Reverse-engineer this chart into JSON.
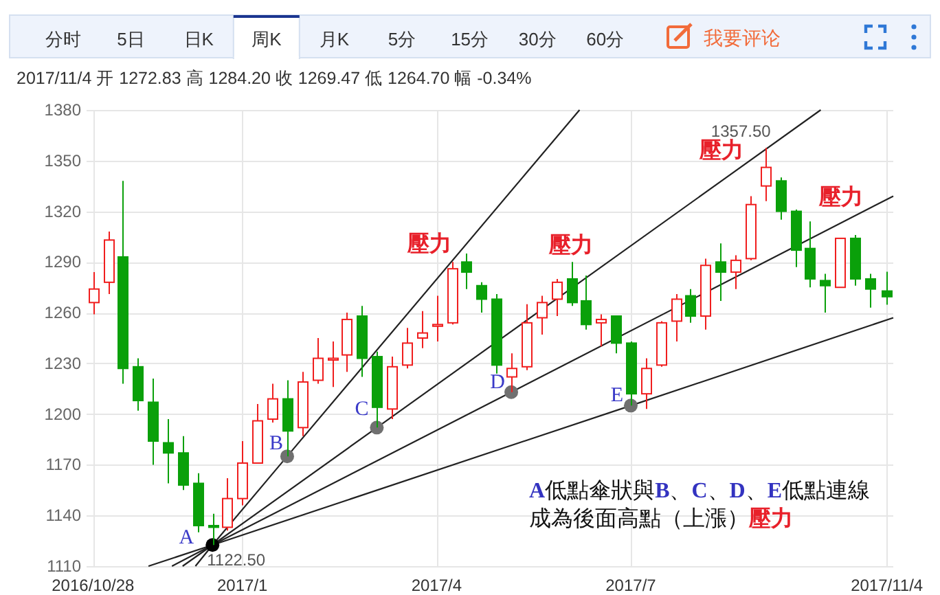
{
  "chart_data": {
    "type": "candlestick",
    "subtitle": "2017/11/4 开 1272.83 高 1284.20 收 1269.47 低 1264.70 幅 -0.34%",
    "x": [
      "2016-10-28",
      "2016-11-04",
      "2016-11-11",
      "2016-11-18",
      "2016-11-25",
      "2016-12-02",
      "2016-12-09",
      "2016-12-16",
      "2016-12-23",
      "2016-12-30",
      "2017-01-06",
      "2017-01-13",
      "2017-01-20",
      "2017-01-27",
      "2017-02-03",
      "2017-02-10",
      "2017-02-17",
      "2017-02-24",
      "2017-03-03",
      "2017-03-10",
      "2017-03-17",
      "2017-03-24",
      "2017-03-31",
      "2017-04-07",
      "2017-04-14",
      "2017-04-21",
      "2017-04-28",
      "2017-05-05",
      "2017-05-12",
      "2017-05-19",
      "2017-05-26",
      "2017-06-02",
      "2017-06-09",
      "2017-06-16",
      "2017-06-23",
      "2017-06-30",
      "2017-07-07",
      "2017-07-14",
      "2017-07-21",
      "2017-07-28",
      "2017-08-04",
      "2017-08-11",
      "2017-08-18",
      "2017-08-25",
      "2017-09-01",
      "2017-09-08",
      "2017-09-15",
      "2017-09-22",
      "2017-09-29",
      "2017-10-06",
      "2017-10-13",
      "2017-10-20",
      "2017-10-27",
      "2017-11-04"
    ],
    "ohlc": [
      [
        1266,
        1284,
        1259,
        1274
      ],
      [
        1278,
        1308,
        1271,
        1303
      ],
      [
        1293,
        1338,
        1218,
        1227
      ],
      [
        1228,
        1233,
        1202,
        1208
      ],
      [
        1207,
        1221,
        1170,
        1184
      ],
      [
        1183,
        1197,
        1159,
        1177
      ],
      [
        1177,
        1187,
        1155,
        1158
      ],
      [
        1159,
        1165,
        1130,
        1134
      ],
      [
        1134,
        1141,
        1122.5,
        1133
      ],
      [
        1133,
        1162,
        1131,
        1150
      ],
      [
        1150,
        1184,
        1146,
        1171
      ],
      [
        1171,
        1206,
        1171,
        1196
      ],
      [
        1197,
        1218,
        1195,
        1209
      ],
      [
        1209,
        1220,
        1175,
        1190
      ],
      [
        1192,
        1225,
        1187,
        1219
      ],
      [
        1220,
        1245,
        1218,
        1233
      ],
      [
        1232,
        1243,
        1216,
        1233
      ],
      [
        1235,
        1260,
        1225,
        1256
      ],
      [
        1258,
        1264,
        1222,
        1233
      ],
      [
        1234,
        1237,
        1192,
        1204
      ],
      [
        1203,
        1234,
        1197,
        1228
      ],
      [
        1229,
        1251,
        1227,
        1242
      ],
      [
        1245,
        1261,
        1239,
        1248
      ],
      [
        1252,
        1270,
        1243,
        1253
      ],
      [
        1254,
        1290,
        1253,
        1286
      ],
      [
        1290,
        1295,
        1274,
        1284
      ],
      [
        1276,
        1278,
        1260,
        1268
      ],
      [
        1268,
        1271,
        1224,
        1229
      ],
      [
        1222,
        1236,
        1213,
        1227
      ],
      [
        1228,
        1265,
        1226,
        1254
      ],
      [
        1257,
        1270,
        1247,
        1266
      ],
      [
        1268,
        1280,
        1258,
        1278
      ],
      [
        1280,
        1290,
        1264,
        1266
      ],
      [
        1267,
        1282,
        1250,
        1253
      ],
      [
        1254,
        1259,
        1240,
        1256
      ],
      [
        1258,
        1258,
        1236,
        1242
      ],
      [
        1242,
        1243,
        1205,
        1212
      ],
      [
        1212,
        1233,
        1203,
        1227
      ],
      [
        1229,
        1255,
        1228,
        1254
      ],
      [
        1255,
        1271,
        1243,
        1268
      ],
      [
        1270,
        1274,
        1254,
        1258
      ],
      [
        1258,
        1292,
        1250,
        1288
      ],
      [
        1290,
        1301,
        1267,
        1284
      ],
      [
        1284,
        1294,
        1274,
        1291
      ],
      [
        1292,
        1329,
        1291,
        1324
      ],
      [
        1335,
        1357.5,
        1326,
        1346
      ],
      [
        1338,
        1340,
        1315,
        1320
      ],
      [
        1320,
        1321,
        1287,
        1297
      ],
      [
        1298,
        1314,
        1275,
        1280
      ],
      [
        1279,
        1283,
        1260,
        1276
      ],
      [
        1275,
        1304,
        1275,
        1304
      ],
      [
        1304,
        1306,
        1276,
        1280
      ],
      [
        1280,
        1283,
        1263,
        1274
      ],
      [
        1272.83,
        1284.2,
        1264.7,
        1269.47
      ]
    ],
    "colors": [
      "#f01e1e",
      "#f01e1e",
      "#0aa00a",
      "#0aa00a",
      "#0aa00a",
      "#0aa00a",
      "#0aa00a",
      "#0aa00a",
      "#0aa00a",
      "#f01e1e",
      "#f01e1e",
      "#f01e1e",
      "#f01e1e",
      "#0aa00a",
      "#f01e1e",
      "#f01e1e",
      "#f01e1e",
      "#f01e1e",
      "#0aa00a",
      "#0aa00a",
      "#f01e1e",
      "#f01e1e",
      "#f01e1e",
      "#f01e1e",
      "#f01e1e",
      "#0aa00a",
      "#0aa00a",
      "#0aa00a",
      "#f01e1e",
      "#f01e1e",
      "#f01e1e",
      "#f01e1e",
      "#0aa00a",
      "#0aa00a",
      "#f01e1e",
      "#0aa00a",
      "#0aa00a",
      "#f01e1e",
      "#f01e1e",
      "#f01e1e",
      "#0aa00a",
      "#f01e1e",
      "#0aa00a",
      "#f01e1e",
      "#f01e1e",
      "#f01e1e",
      "#0aa00a",
      "#0aa00a",
      "#0aa00a",
      "#0aa00a",
      "#f01e1e",
      "#0aa00a",
      "#0aa00a",
      "#0aa00a"
    ],
    "xlim": [
      "2016-10-25",
      "2017-11-07"
    ],
    "xticks": [
      {
        "value": "2016-10-28",
        "label": "2016/10/28"
      },
      {
        "value": "2017-01-06",
        "label": "2017/1"
      },
      {
        "value": "2017-04-07",
        "label": "2017/4"
      },
      {
        "value": "2017-07-07",
        "label": "2017/7"
      },
      {
        "value": "2017-11-04",
        "label": "2017/11/4"
      }
    ],
    "ylim": [
      1110,
      1380
    ],
    "yticks": [
      1110,
      1140,
      1170,
      1200,
      1230,
      1260,
      1290,
      1320,
      1350,
      1380
    ],
    "grid": true,
    "series": [
      {
        "type": "line",
        "color": "#222222",
        "x": [
          "2016-12-15",
          "2016-12-23",
          "2017-01-27",
          "2017-06-13"
        ],
        "values": [
          1110,
          1122.5,
          1175,
          1380
        ]
      },
      {
        "type": "line",
        "color": "#222222",
        "x": [
          "2016-12-09",
          "2016-12-23",
          "2017-03-10",
          "2017-10-04"
        ],
        "values": [
          1110,
          1122.5,
          1192,
          1380
        ]
      },
      {
        "type": "line",
        "color": "#222222",
        "x": [
          "2016-12-04",
          "2016-12-23",
          "2017-05-12",
          "2017-11-07"
        ],
        "values": [
          1110,
          1122.5,
          1213,
          1329
        ]
      },
      {
        "type": "line",
        "color": "#222222",
        "x": [
          "2016-11-23",
          "2016-12-23",
          "2017-07-07",
          "2017-11-07"
        ],
        "values": [
          1110,
          1122.5,
          1205,
          1257
        ]
      },
      {
        "type": "scatter",
        "marker": "circle",
        "x": [
          "2016-12-23",
          "2017-01-27",
          "2017-03-10",
          "2017-05-12",
          "2017-07-07"
        ],
        "values": [
          1122.5,
          1175,
          1192,
          1213,
          1205
        ],
        "colors": [
          "#000000",
          "#707070",
          "#707070",
          "#707070",
          "#707070"
        ]
      }
    ],
    "annotations": [
      "分时",
      "5日",
      "日K",
      "周K",
      "月K",
      "5分",
      "15分",
      "30分",
      "60分",
      "我要评论",
      {
        "text": "A",
        "x": "2016-12-23",
        "y": 1122.5
      },
      {
        "text": "B",
        "x": "2017-01-27",
        "y": 1175
      },
      {
        "text": "C",
        "x": "2017-03-10",
        "y": 1192
      },
      {
        "text": "D",
        "x": "2017-05-12",
        "y": 1213
      },
      {
        "text": "E",
        "x": "2017-07-07",
        "y": 1205
      },
      {
        "text": "壓力",
        "x": "2017-04-14",
        "y": 1290
      },
      {
        "text": "壓力",
        "x": "2017-06-09",
        "y": 1290
      },
      {
        "text": "壓力",
        "x": "2017-09-08",
        "y": 1357.5
      },
      {
        "text": "壓力",
        "x": "2017-10-20",
        "y": 1317
      },
      {
        "text": "1122.50",
        "x": "2016-12-23",
        "y": 1122.5
      },
      {
        "text": "1357.50",
        "x": "2017-09-08",
        "y": 1357.5
      },
      "**A**低點傘狀與**B**、**C**、**D**、**E**低點連線",
      "成為後面高點（上漲）**壓力**"
    ]
  }
}
